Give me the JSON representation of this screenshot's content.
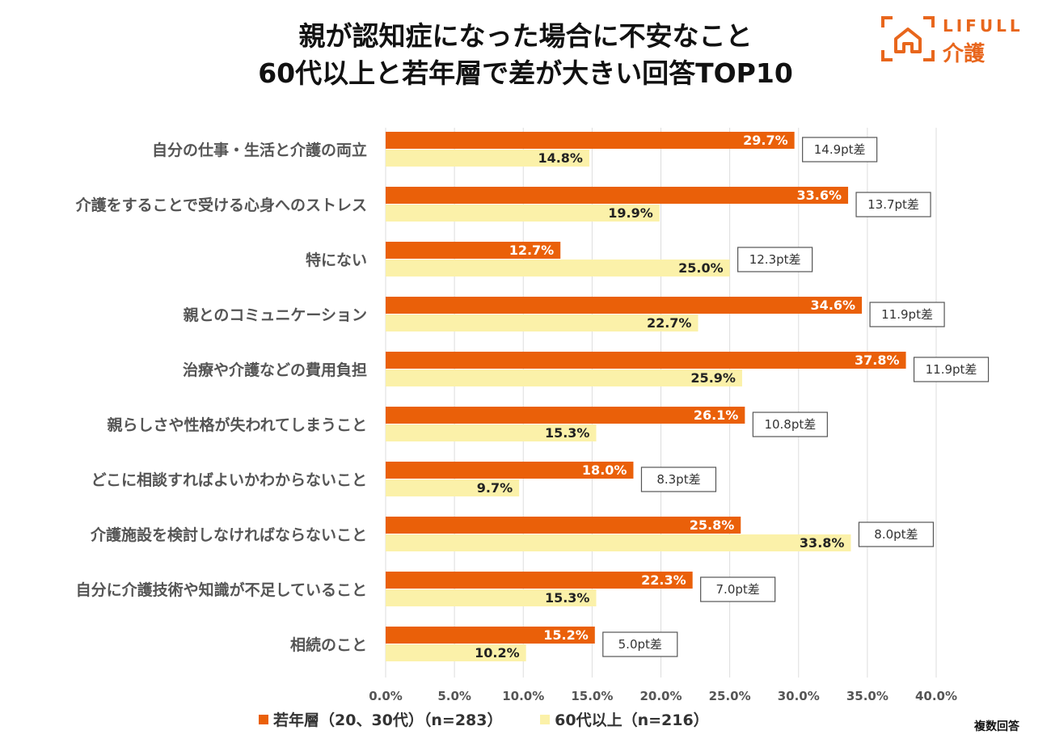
{
  "title_line1": "親が認知症になった場合に不安なこと",
  "title_line2": "60代以上と若年層で差が大きい回答TOP10",
  "logo": {
    "brand_en": "LIFULL",
    "brand_ja": "介護"
  },
  "note": "複数回答",
  "colors": {
    "young": "#ea6009",
    "senior": "#fbf1a9",
    "grid": "#dddddd",
    "label_text": "#555555"
  },
  "chart_data": {
    "type": "bar",
    "orientation": "horizontal",
    "categories": [
      "自分の仕事・生活と介護の両立",
      "介護をすることで受ける心身へのストレス",
      "特にない",
      "親とのコミュニケーション",
      "治療や介護などの費用負担",
      "親らしさや性格が失われてしまうこと",
      "どこに相談すればよいかわからないこと",
      "介護施設を検討しなければならないこと",
      "自分に介護技術や知識が不足していること",
      "相続のこと"
    ],
    "series": [
      {
        "name": "若年層（20、30代）（n=283）",
        "values": [
          29.7,
          33.6,
          12.7,
          34.6,
          37.8,
          26.1,
          18.0,
          25.8,
          22.3,
          15.2
        ],
        "labels": [
          "29.7%",
          "33.6%",
          "12.7%",
          "34.6%",
          "37.8%",
          "26.1%",
          "18.0%",
          "25.8%",
          "22.3%",
          "15.2%"
        ]
      },
      {
        "name": "60代以上（n=216）",
        "values": [
          14.8,
          19.9,
          25.0,
          22.7,
          25.9,
          15.3,
          9.7,
          33.8,
          15.3,
          10.2
        ],
        "labels": [
          "14.8%",
          "19.9%",
          "25.0%",
          "22.7%",
          "25.9%",
          "15.3%",
          "9.7%",
          "33.8%",
          "15.3%",
          "10.2%"
        ]
      }
    ],
    "diff_labels": [
      "14.9pt差",
      "13.7pt差",
      "12.3pt差",
      "11.9pt差",
      "11.9pt差",
      "10.8pt差",
      "8.3pt差",
      "8.0pt差",
      "7.0pt差",
      "5.0pt差"
    ],
    "xlim": [
      0,
      40
    ],
    "xticks": [
      0,
      5,
      10,
      15,
      20,
      25,
      30,
      35,
      40
    ],
    "xtick_labels": [
      "0.0%",
      "5.0%",
      "10.0%",
      "15.0%",
      "20.0%",
      "25.0%",
      "30.0%",
      "35.0%",
      "40.0%"
    ],
    "grid": true,
    "legend_position": "bottom"
  }
}
